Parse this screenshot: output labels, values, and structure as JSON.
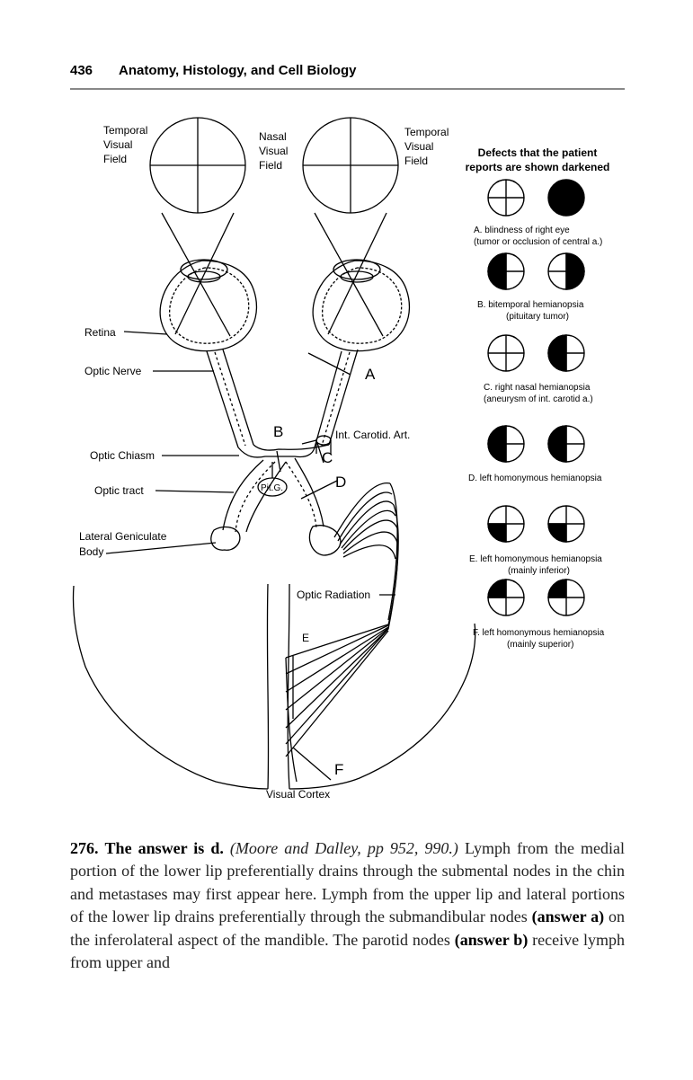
{
  "header": {
    "page_number": "436",
    "book_title": "Anatomy, Histology, and Cell Biology"
  },
  "figure": {
    "labels": {
      "temporal_left": [
        "Temporal",
        "Visual",
        "Field"
      ],
      "nasal": [
        "Nasal",
        "Visual",
        "Field"
      ],
      "temporal_right": [
        "Temporal",
        "Visual",
        "Field"
      ],
      "retina": "Retina",
      "optic_nerve": "Optic Nerve",
      "optic_chiasm": "Optic Chiasm",
      "optic_tract": "Optic tract",
      "lgb": [
        "Lateral Geniculate",
        "Body"
      ],
      "int_carotid": "Int. Carotid. Art.",
      "pit_g": "Pit.G.",
      "optic_radiation": "Optic Radiation",
      "visual_cortex": "Visual Cortex",
      "letter_a": "A",
      "letter_b": "B",
      "letter_c": "C",
      "letter_d": "D",
      "letter_e": "E",
      "letter_f": "F"
    },
    "defects": {
      "title": [
        "Defects that the patient",
        "reports are shown darkened"
      ],
      "a": [
        "A. blindness of right eye",
        "(tumor or occlusion of central a.)"
      ],
      "b": [
        "B. bitemporal hemianopsia",
        "(pituitary tumor)"
      ],
      "c": [
        "C. right nasal hemianopsia",
        "(aneurysm of int. carotid a.)"
      ],
      "d": [
        "D. left homonymous hemianopsia"
      ],
      "e": [
        "E. left homonymous hemianopsia",
        "(mainly inferior)"
      ],
      "f": [
        "F. left homonymous hemianopsia",
        "(mainly superior)"
      ]
    }
  },
  "answer": {
    "number": "276.",
    "lead": "The answer is d.",
    "reference": "(Moore and Dalley, pp 952, 990.)",
    "t1": " Lymph from the medial portion of the lower lip preferentially drains through the submental nodes in the chin and metastases may first appear here. Lymph from the upper lip and lateral portions of the lower lip drains preferentially through the submandibular nodes ",
    "answer_a": "(answer a)",
    "t2": " on the inferolateral aspect of the mandible. The parotid nodes ",
    "answer_b": "(answer b)",
    "t3": " receive lymph from upper and"
  }
}
